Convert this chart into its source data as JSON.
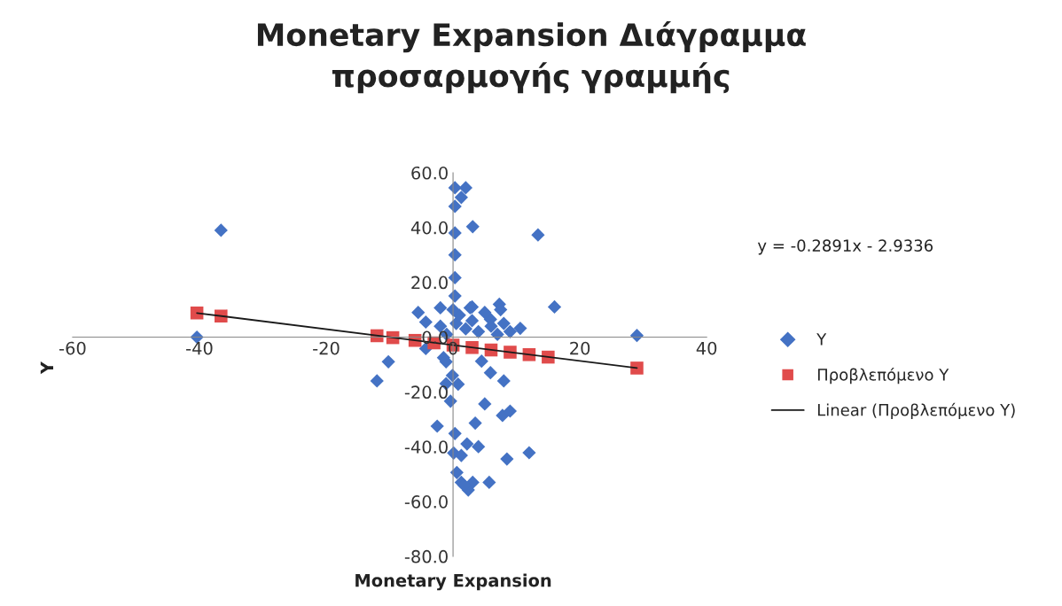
{
  "chart_data": {
    "type": "scatter",
    "title": "Monetary Expansion Διάγραμμα προσαρμογής γραμμής",
    "xlabel": "Monetary Expansion",
    "ylabel": "Y",
    "annotations": [
      "y = -0.2891x - 2.9336"
    ],
    "xlim": [
      -60,
      40
    ],
    "xticks": [
      -60,
      -40,
      -20,
      0,
      20,
      40
    ],
    "ylim": [
      -80,
      60
    ],
    "yticks": [
      {
        "value": -80,
        "label": "-80.0"
      },
      {
        "value": -60,
        "label": "-60.0"
      },
      {
        "value": -40,
        "label": "-40.0"
      },
      {
        "value": -20,
        "label": "-20.0"
      },
      {
        "value": 0,
        "label": "0.0"
      },
      {
        "value": 20,
        "label": "20.0"
      },
      {
        "value": 40,
        "label": "40.0"
      },
      {
        "value": 60,
        "label": "60.0"
      }
    ],
    "grid": false,
    "legend": "right",
    "series": [
      {
        "name": "Y",
        "marker": "diamond",
        "color": "#4472c4",
        "x": [
          -36.6,
          -40.4,
          -10.2,
          -12,
          -5.5,
          0.3,
          2.0,
          1.3,
          0.3,
          3.1,
          0.3,
          0.3,
          0.3,
          13.4,
          16,
          29,
          0.3,
          -2,
          2.7,
          7.3,
          5.9,
          10.6,
          -4.3,
          -4.3,
          -1.5,
          4.5,
          5.9,
          8,
          -1.1,
          -0.1,
          -1.1,
          0.8,
          -0.4,
          5,
          7.8,
          9,
          -2.5,
          3.5,
          0.3,
          2.2,
          4,
          0.1,
          1.3,
          8.5,
          12,
          0.6,
          1.3,
          3.1,
          5.7,
          2.4,
          1.7,
          0.5,
          1,
          2,
          3,
          4,
          5,
          6,
          7,
          8,
          9,
          -2,
          -1,
          0,
          3,
          7.5
        ],
        "values": [
          39,
          0,
          -9,
          -16,
          9,
          54.5,
          54.5,
          51,
          47.7,
          40.3,
          38,
          30,
          21.7,
          37.3,
          11,
          0.6,
          15,
          10.7,
          10.7,
          12,
          6.5,
          3.2,
          5.5,
          -4.2,
          -7.5,
          -8.8,
          -13,
          -16,
          -9,
          -14,
          -17,
          -17.2,
          -23.4,
          -24.4,
          -28.6,
          -27,
          -32.5,
          -31.4,
          -35.2,
          -39,
          -40,
          -42.3,
          -43.2,
          -44.5,
          -42.2,
          -49.4,
          -53,
          -53,
          -53,
          -55.8,
          -54,
          5,
          8,
          3,
          6,
          2,
          9,
          4,
          1,
          5,
          2,
          4,
          1,
          10,
          11,
          10
        ]
      },
      {
        "name": "Προβλεπόμενο Y",
        "marker": "square",
        "color": "#e04b4b",
        "x": [
          -40.4,
          -36.6,
          -12,
          -9.5,
          -6,
          -3,
          0,
          3,
          6,
          9,
          12,
          15,
          29
        ],
        "values": [
          8.8,
          7.7,
          0.5,
          -0.2,
          -1.2,
          -2.1,
          -2.9,
          -3.8,
          -4.7,
          -5.5,
          -6.4,
          -7.3,
          -11.3
        ]
      },
      {
        "name": "Linear (Προβλεπόμενο Y)",
        "type": "line",
        "marker": "none",
        "line_style": "solid",
        "color": "#1a1a1a",
        "x": [
          -40.4,
          29
        ],
        "values": [
          8.8,
          -11.3
        ]
      }
    ]
  }
}
